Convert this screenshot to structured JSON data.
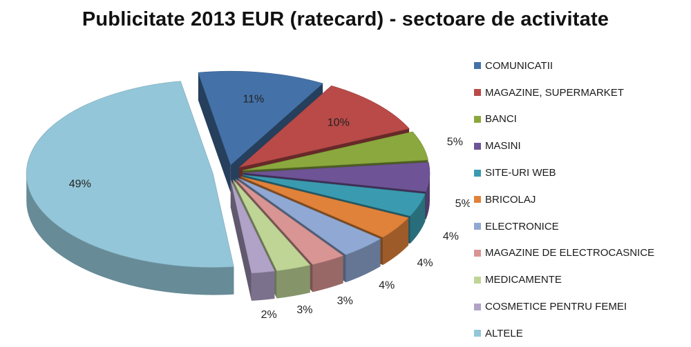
{
  "chart_data": {
    "type": "pie",
    "title": "Publicitate 2013 EUR (ratecard) - sectoare de activitate",
    "slices": [
      {
        "label": "COMUNICATII",
        "value": 11,
        "value_label": "11%",
        "color": "#4472a8"
      },
      {
        "label": "MAGAZINE, SUPERMARKET",
        "value": 10,
        "value_label": "10%",
        "color": "#b94a48"
      },
      {
        "label": "BANCI",
        "value": 5,
        "value_label": "5%",
        "color": "#8aa83e"
      },
      {
        "label": "MASINI",
        "value": 5,
        "value_label": "5%",
        "color": "#6e5496"
      },
      {
        "label": "SITE-URI WEB",
        "value": 4,
        "value_label": "4%",
        "color": "#3a9bb0"
      },
      {
        "label": "BRICOLAJ",
        "value": 4,
        "value_label": "4%",
        "color": "#e0823a"
      },
      {
        "label": "ELECTRONICE",
        "value": 4,
        "value_label": "4%",
        "color": "#8fa9d4"
      },
      {
        "label": "MAGAZINE DE ELECTROCASNICE",
        "value": 3,
        "value_label": "3%",
        "color": "#d99593"
      },
      {
        "label": "MEDICAMENTE",
        "value": 3,
        "value_label": "3%",
        "color": "#bed596"
      },
      {
        "label": "COSMETICE PENTRU FEMEI",
        "value": 2,
        "value_label": "2%",
        "color": "#b1a2c8"
      },
      {
        "label": "ALTELE",
        "value": 49,
        "value_label": "49%",
        "color": "#93c6d8"
      }
    ],
    "exploded": true,
    "three_d": true,
    "legend_position": "right"
  }
}
